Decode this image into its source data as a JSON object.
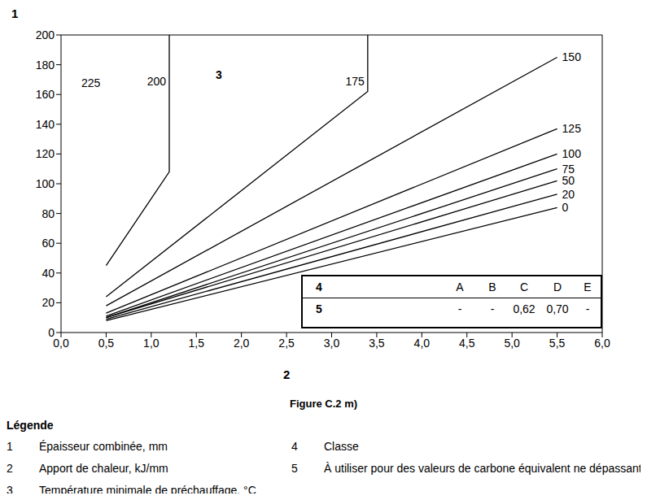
{
  "chart_data": {
    "type": "line",
    "title": "Figure C.2 m)",
    "x_label": "2",
    "y_label": "1",
    "xlim": [
      0,
      6
    ],
    "ylim": [
      0,
      200
    ],
    "xticks": [
      {
        "value": 0,
        "label": "0,0"
      },
      {
        "value": 0.5,
        "label": "0,5"
      },
      {
        "value": 1,
        "label": "1,0"
      },
      {
        "value": 1.5,
        "label": "1,5"
      },
      {
        "value": 2,
        "label": "2,0"
      },
      {
        "value": 2.5,
        "label": "2,5"
      },
      {
        "value": 3,
        "label": "3,0"
      },
      {
        "value": 3.5,
        "label": "3,5"
      },
      {
        "value": 4,
        "label": "4,0"
      },
      {
        "value": 4.5,
        "label": "4,5"
      },
      {
        "value": 5,
        "label": "5,0"
      },
      {
        "value": 5.5,
        "label": "5,5"
      },
      {
        "value": 6,
        "label": "6,0"
      }
    ],
    "yticks": [
      0,
      20,
      40,
      60,
      80,
      100,
      120,
      140,
      160,
      180,
      200
    ],
    "grid": false,
    "color": "#000000",
    "series": [
      {
        "name": "0",
        "x": [
          0.5,
          5.5
        ],
        "values": [
          8,
          84
        ]
      },
      {
        "name": "20",
        "x": [
          0.5,
          5.5
        ],
        "values": [
          9,
          93
        ]
      },
      {
        "name": "50",
        "x": [
          0.5,
          5.5
        ],
        "values": [
          10,
          102
        ]
      },
      {
        "name": "75",
        "x": [
          0.5,
          5.5
        ],
        "values": [
          10,
          110
        ]
      },
      {
        "name": "100",
        "x": [
          0.5,
          5.5
        ],
        "values": [
          11,
          120
        ]
      },
      {
        "name": "125",
        "x": [
          0.5,
          5.5
        ],
        "values": [
          13,
          137
        ]
      },
      {
        "name": "150",
        "x": [
          0.5,
          5.5
        ],
        "values": [
          18,
          185
        ]
      },
      {
        "name": "175",
        "x": [
          0.5,
          3.4,
          3.4
        ],
        "values": [
          24,
          162,
          200
        ]
      },
      {
        "name": "200",
        "x": [
          0.5,
          1.2,
          1.2
        ],
        "values": [
          45,
          108,
          200
        ]
      }
    ],
    "annotations": [
      {
        "text": "225",
        "x": 0.33,
        "y": 168
      },
      {
        "text": "3",
        "x": 1.75,
        "y": 173
      }
    ],
    "table": {
      "header": [
        "4",
        "A",
        "B",
        "C",
        "D",
        "E"
      ],
      "rows": [
        [
          "5",
          "-",
          "-",
          "0,62",
          "0,70",
          "-"
        ]
      ]
    }
  },
  "key_title": "Légende",
  "key_items": [
    {
      "number": "1",
      "text": "Épaisseur combinée, mm"
    },
    {
      "number": "2",
      "text": "Apport de chaleur, kJ/mm"
    },
    {
      "number": "3",
      "text": "Température minimale de préchauffage, °C"
    },
    {
      "number": "4",
      "text": "Classe"
    },
    {
      "number": "5",
      "text": "À utiliser pour des valeurs de carbone équivalent ne dépassant pas"
    }
  ]
}
